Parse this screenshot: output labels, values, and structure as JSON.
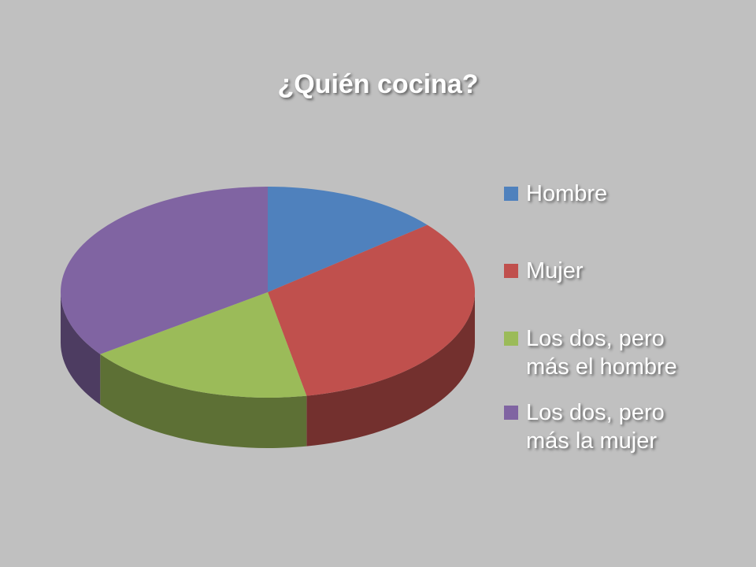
{
  "chart_data": {
    "type": "pie",
    "title": "¿Quién cocina?",
    "categories": [
      "Hombre",
      "Mujer",
      "Los dos, pero más el hombre",
      "Los dos, pero más la mujer"
    ],
    "values": [
      14,
      33,
      18,
      35
    ],
    "colors": [
      "#4f81bd",
      "#c0504d",
      "#9bbb59",
      "#8064a2"
    ],
    "legend": "right"
  }
}
